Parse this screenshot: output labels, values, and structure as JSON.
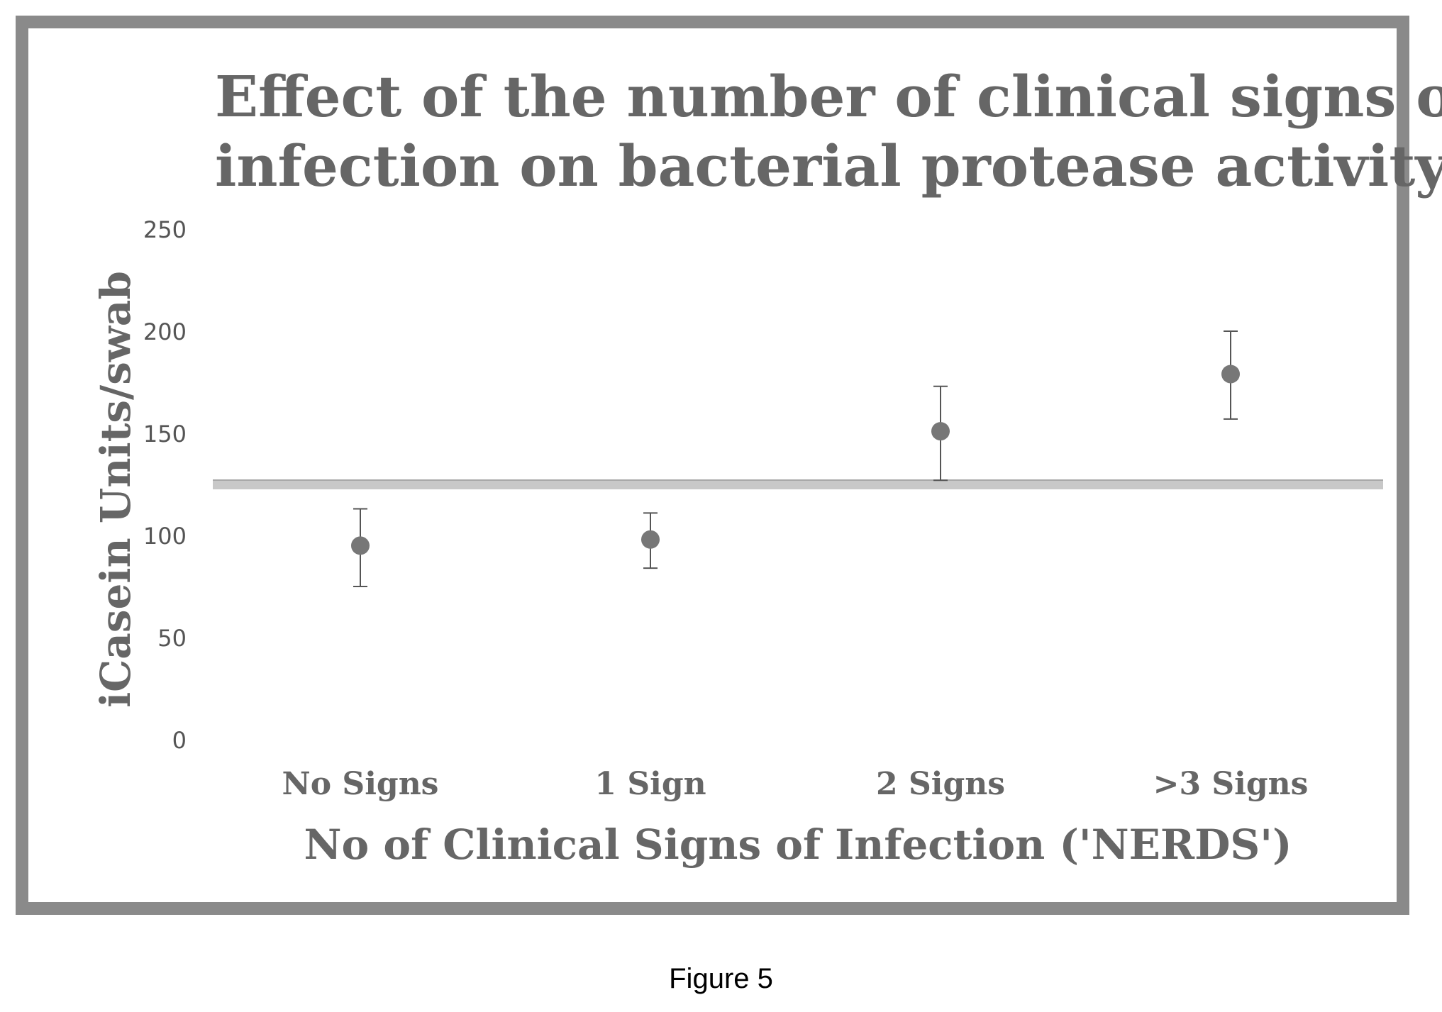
{
  "figure_caption": "Figure 5",
  "chart_data": {
    "type": "scatter",
    "title_lines": [
      "Effect of the number of clinical signs of",
      "infection on bacterial protease activity"
    ],
    "xlabel": "No of Clinical Signs of Infection ('NERDS')",
    "ylabel": "iCasein Units/swab",
    "categories": [
      "No Signs",
      "1 Sign",
      "2 Signs",
      ">3 Signs"
    ],
    "yticks": [
      0,
      50,
      100,
      150,
      200,
      250
    ],
    "ylim": [
      0,
      250
    ],
    "series": [
      {
        "values": [
          95,
          98,
          151,
          179
        ],
        "error_low": [
          75,
          84,
          127,
          157
        ],
        "error_high": [
          113,
          111,
          173,
          200
        ]
      }
    ],
    "reference_line": 125,
    "grid": false,
    "legend": "none",
    "colors": {
      "point": "#777777",
      "error_bar": "#555555",
      "reference_line": "#c8c8c8",
      "frame": "#8a8a8a",
      "text": "#666666"
    }
  }
}
